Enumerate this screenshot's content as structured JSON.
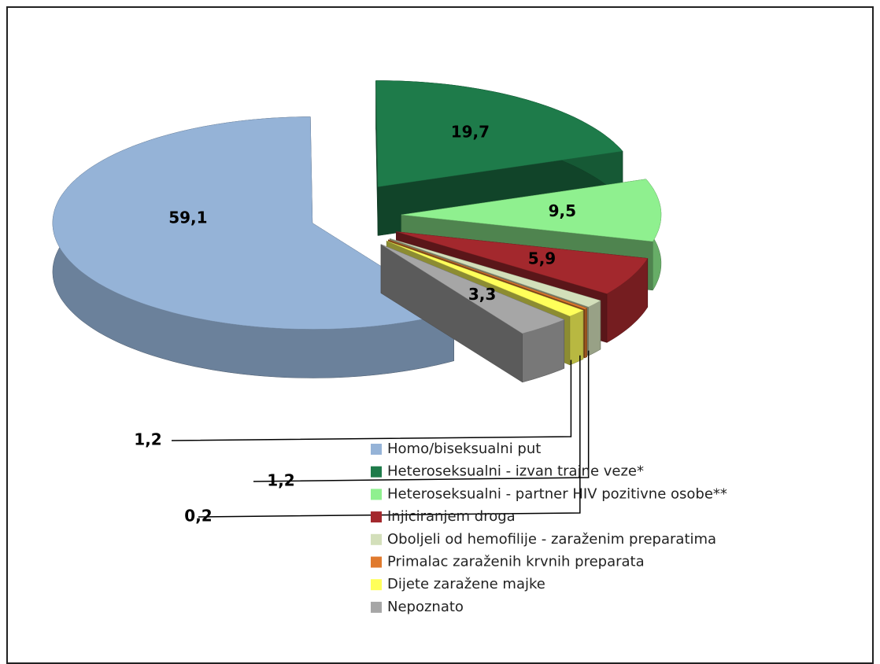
{
  "chart_data": {
    "type": "pie",
    "categories": [
      "Homo/biseksualni put",
      "Heteroseksualni - izvan trajne veze*",
      "Heteroseksualni - partner HIV pozitivne osobe**",
      "Injiciranjem droga",
      "Oboljeli od hemofilije - zaraženim preparatima",
      "Primalac zaraženih krvnih preparata",
      "Dijete zaražene majke",
      "Nepoznato"
    ],
    "values": [
      59.1,
      19.7,
      9.5,
      5.9,
      1.2,
      0.2,
      1.2,
      3.3
    ],
    "value_labels": [
      "59,1",
      "19,7",
      "9,5",
      "5,9",
      "1,2",
      "0,2",
      "1,2",
      "3,3"
    ],
    "colors": [
      "#95b3d7",
      "#1e7b4a",
      "#8ff08f",
      "#a3282d",
      "#d3dfba",
      "#e07a2e",
      "#ffff5a",
      "#a6a6a6"
    ],
    "legend": "bottom-right"
  }
}
